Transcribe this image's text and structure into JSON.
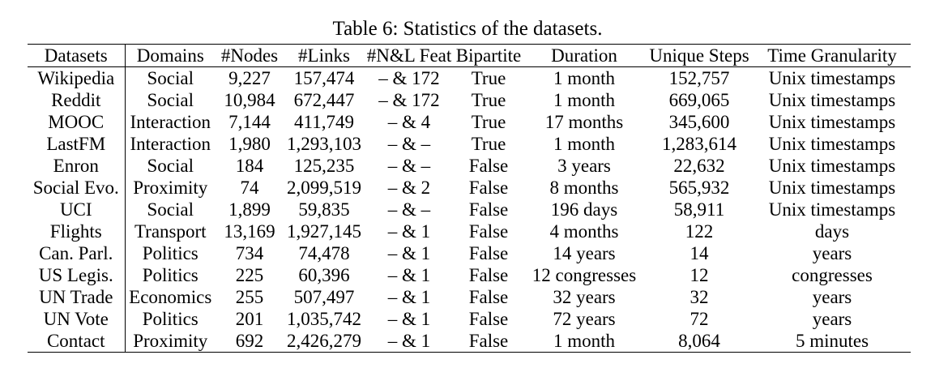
{
  "caption": "Table 6: Statistics of the datasets.",
  "columns": [
    "Datasets",
    "Domains",
    "#Nodes",
    "#Links",
    "#N&L Feat",
    "Bipartite",
    "Duration",
    "Unique Steps",
    "Time Granularity"
  ],
  "rows": [
    [
      "Wikipedia",
      "Social",
      "9,227",
      "157,474",
      "– & 172",
      "True",
      "1 month",
      "152,757",
      "Unix timestamps"
    ],
    [
      "Reddit",
      "Social",
      "10,984",
      "672,447",
      "– & 172",
      "True",
      "1 month",
      "669,065",
      "Unix timestamps"
    ],
    [
      "MOOC",
      "Interaction",
      "7,144",
      "411,749",
      "– & 4",
      "True",
      "17 months",
      "345,600",
      "Unix timestamps"
    ],
    [
      "LastFM",
      "Interaction",
      "1,980",
      "1,293,103",
      "– & –",
      "True",
      "1 month",
      "1,283,614",
      "Unix timestamps"
    ],
    [
      "Enron",
      "Social",
      "184",
      "125,235",
      "– & –",
      "False",
      "3 years",
      "22,632",
      "Unix timestamps"
    ],
    [
      "Social Evo.",
      "Proximity",
      "74",
      "2,099,519",
      "– & 2",
      "False",
      "8 months",
      "565,932",
      "Unix timestamps"
    ],
    [
      "UCI",
      "Social",
      "1,899",
      "59,835",
      "– & –",
      "False",
      "196 days",
      "58,911",
      "Unix timestamps"
    ],
    [
      "Flights",
      "Transport",
      "13,169",
      "1,927,145",
      "– & 1",
      "False",
      "4 months",
      "122",
      "days"
    ],
    [
      "Can. Parl.",
      "Politics",
      "734",
      "74,478",
      "– & 1",
      "False",
      "14 years",
      "14",
      "years"
    ],
    [
      "US Legis.",
      "Politics",
      "225",
      "60,396",
      "– & 1",
      "False",
      "12 congresses",
      "12",
      "congresses"
    ],
    [
      "UN Trade",
      "Economics",
      "255",
      "507,497",
      "– & 1",
      "False",
      "32 years",
      "32",
      "years"
    ],
    [
      "UN Vote",
      "Politics",
      "201",
      "1,035,742",
      "– & 1",
      "False",
      "72 years",
      "72",
      "years"
    ],
    [
      "Contact",
      "Proximity",
      "692",
      "2,426,279",
      "– & 1",
      "False",
      "1 month",
      "8,064",
      "5 minutes"
    ]
  ]
}
